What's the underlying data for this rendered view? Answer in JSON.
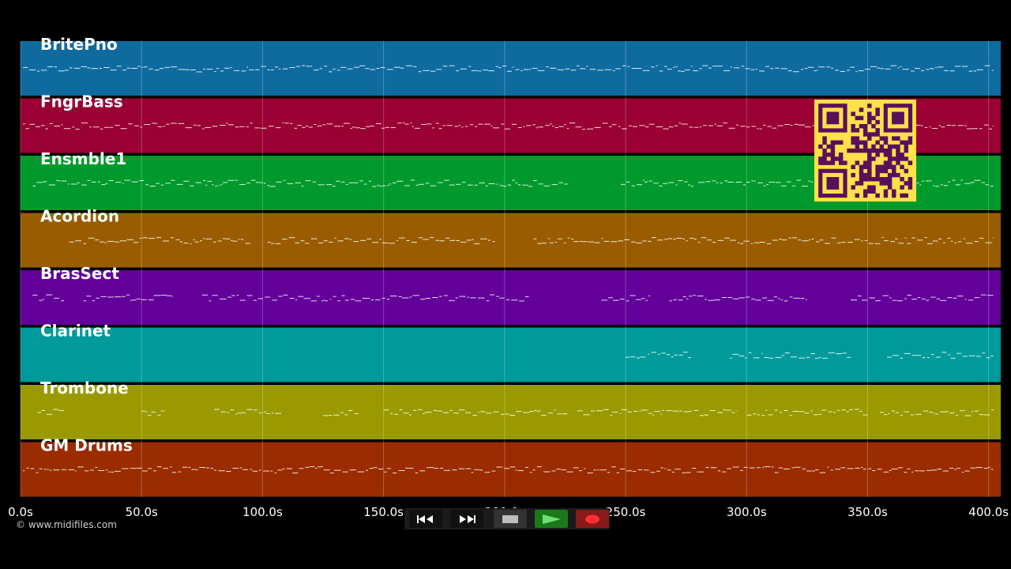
{
  "tracks": [
    {
      "name": "BritePno",
      "color": "#0f6aa0"
    },
    {
      "name": "FngrBass",
      "color": "#9a0033"
    },
    {
      "name": "Ensmble1",
      "color": "#009a2c"
    },
    {
      "name": "Acordion",
      "color": "#9a5c00"
    },
    {
      "name": "BrasSect",
      "color": "#63009a"
    },
    {
      "name": "Clarinet",
      "color": "#009a9a"
    },
    {
      "name": "Trombone",
      "color": "#9a9a00"
    },
    {
      "name": "GM Drums",
      "color": "#9a2c00"
    }
  ],
  "axis": {
    "min": 0,
    "max": 405,
    "ticks": [
      {
        "value": 0,
        "label": "0.0s"
      },
      {
        "value": 50,
        "label": "50.0s"
      },
      {
        "value": 100,
        "label": "100.0s"
      },
      {
        "value": 150,
        "label": "150.0s"
      },
      {
        "value": 200,
        "label": "200.0s"
      },
      {
        "value": 250,
        "label": "250.0s"
      },
      {
        "value": 300,
        "label": "300.0s"
      },
      {
        "value": 350,
        "label": "350.0s"
      },
      {
        "value": 400,
        "label": "400.0s"
      }
    ]
  },
  "note_segments": [
    [
      [
        1,
        402
      ]
    ],
    [
      [
        1,
        402
      ]
    ],
    [
      [
        5,
        226
      ],
      [
        248,
        278
      ],
      [
        280,
        402
      ]
    ],
    [
      [
        20,
        95
      ],
      [
        102,
        196
      ],
      [
        212,
        402
      ]
    ],
    [
      [
        5,
        18
      ],
      [
        26,
        63
      ],
      [
        75,
        210
      ],
      [
        240,
        260
      ],
      [
        268,
        325
      ],
      [
        343,
        402
      ]
    ],
    [
      [
        250,
        277
      ],
      [
        293,
        343
      ],
      [
        358,
        402
      ]
    ],
    [
      [
        7,
        18
      ],
      [
        50,
        60
      ],
      [
        80,
        108
      ],
      [
        125,
        140
      ],
      [
        150,
        226
      ],
      [
        230,
        296
      ],
      [
        300,
        350
      ],
      [
        355,
        402
      ]
    ],
    [
      [
        1,
        402
      ]
    ]
  ],
  "copyright": "© www.midifiles.com",
  "transport": {
    "rewind_icon": "rewind-icon",
    "fast_forward_icon": "fast-forward-icon",
    "stop_icon": "stop-icon",
    "play_icon": "play-icon",
    "record_icon": "record-icon"
  },
  "colors": {
    "background": "#000000",
    "play": "#1a7a1a",
    "record": "#8a1a1a",
    "qr_fg": "#5a0f5a",
    "qr_bg": "#ffe14a"
  }
}
